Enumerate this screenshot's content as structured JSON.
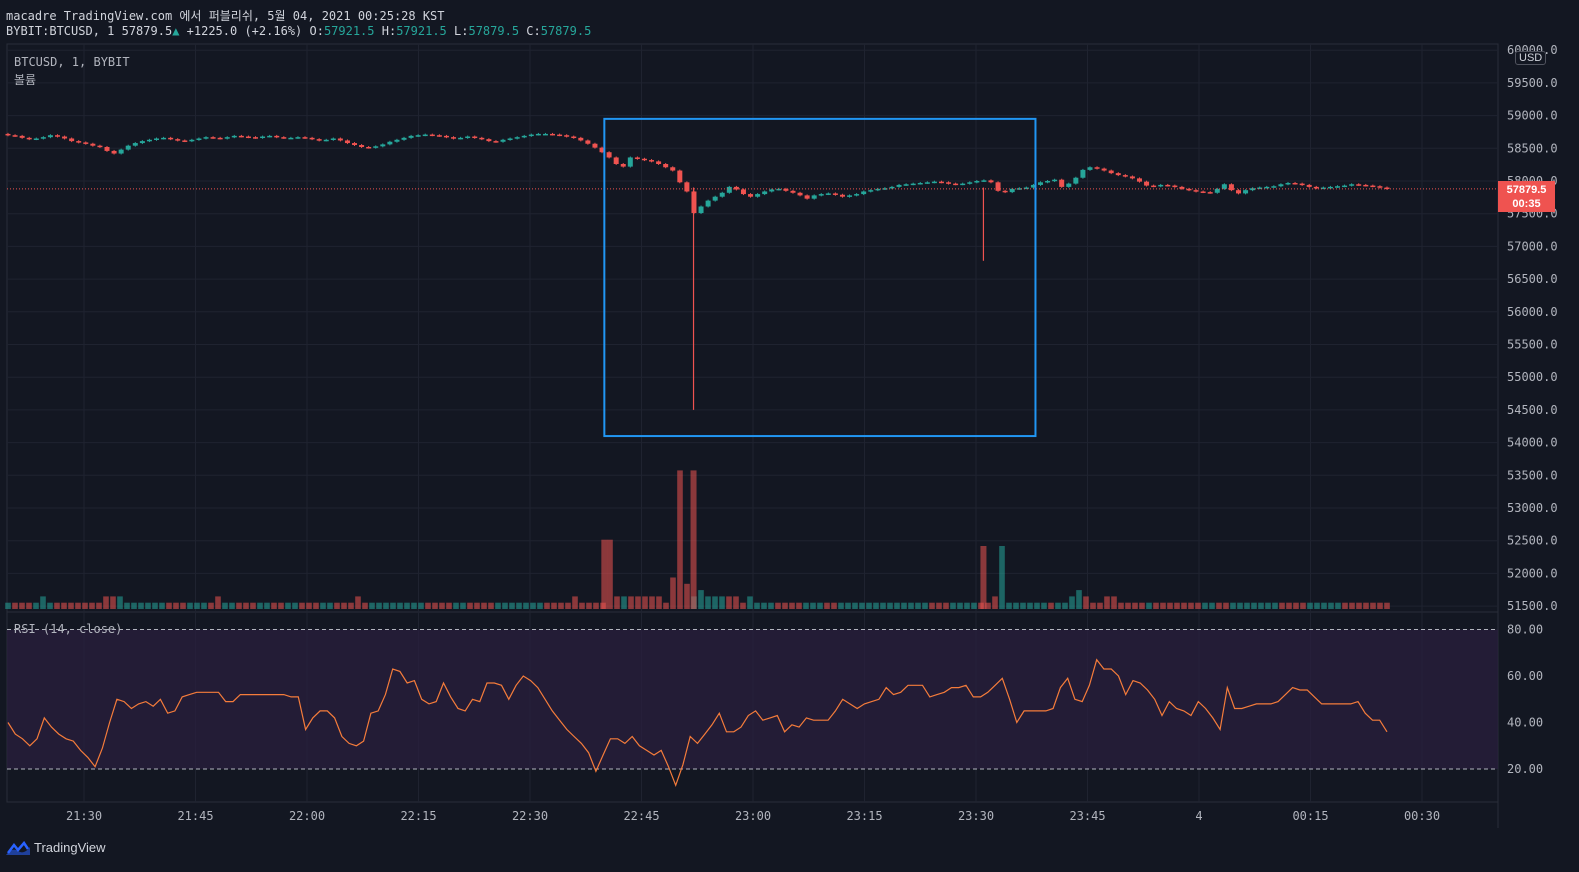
{
  "header": {
    "publish_line": "macadre TradingView.com 에서 퍼블리쉬, 5월 04, 2021 00:25:28 KST",
    "symbol": "BYBIT:BTCUSD, 1",
    "last": "57879.5",
    "change_icon": "triangle-up-icon",
    "change": "+1225.0 (+2.16%)",
    "o_label": "O:",
    "o_val": "57921.5",
    "h_label": "H:",
    "h_val": "57921.5",
    "l_label": "L:",
    "l_val": "57879.5",
    "c_label": "C:",
    "c_val": "57879.5"
  },
  "pane": {
    "series_label": "BTCUSD, 1, BYBIT",
    "volume_label": "볼륨",
    "rsi_label": "RSI (14, close)",
    "currency": "USD",
    "price_tag": "57879.5",
    "countdown": "00:35"
  },
  "branding": {
    "name": "TradingView",
    "icon": "tradingview-logo-icon"
  },
  "colors": {
    "background": "#131722",
    "up": "#26a69a",
    "down": "#ef5350",
    "rsi_line": "#f57c3b",
    "rsi_band": "#2a1f3d",
    "highlight_box": "#2196f3"
  },
  "chart_data": [
    {
      "type": "candlestick",
      "title": "BTCUSD, 1, BYBIT",
      "y_axis_ticks": [
        51500,
        52000,
        52500,
        53000,
        53500,
        54000,
        54500,
        55000,
        55500,
        56000,
        56500,
        57000,
        57500,
        58000,
        58500,
        59000,
        59500,
        60000
      ],
      "y_axis_top_label": "60000.0",
      "x_axis_ticks": [
        "21:30",
        "21:45",
        "22:00",
        "22:15",
        "22:30",
        "22:45",
        "23:00",
        "23:15",
        "23:30",
        "23:45",
        "4",
        "00:15",
        "00:30"
      ],
      "last_price": 57879.5,
      "highlight_region": {
        "from_time": "22:40",
        "to_time": "23:38",
        "price_low": 54100,
        "price_high": 58950
      },
      "close": [
        58700,
        58690,
        58660,
        58640,
        58650,
        58670,
        58700,
        58680,
        58650,
        58610,
        58590,
        58570,
        58540,
        58520,
        58460,
        58420,
        58480,
        58540,
        58580,
        58610,
        58630,
        58650,
        58660,
        58640,
        58620,
        58610,
        58630,
        58650,
        58670,
        58660,
        58650,
        58670,
        58690,
        58680,
        58670,
        58660,
        58680,
        58690,
        58670,
        58660,
        58660,
        58670,
        58660,
        58640,
        58620,
        58630,
        58650,
        58620,
        58580,
        58550,
        58520,
        58510,
        58530,
        58560,
        58600,
        58630,
        58660,
        58690,
        58700,
        58710,
        58700,
        58690,
        58670,
        58650,
        58660,
        58680,
        58660,
        58640,
        58610,
        58600,
        58630,
        58650,
        58670,
        58690,
        58710,
        58720,
        58720,
        58710,
        58700,
        58680,
        58660,
        58620,
        58570,
        58510,
        58440,
        58360,
        58260,
        58220,
        58360,
        58340,
        58320,
        58300,
        58260,
        58210,
        58160,
        57980,
        57840,
        57510,
        57610,
        57700,
        57760,
        57820,
        57910,
        57870,
        57800,
        57760,
        57800,
        57840,
        57870,
        57880,
        57850,
        57820,
        57780,
        57730,
        57780,
        57800,
        57810,
        57790,
        57760,
        57780,
        57800,
        57840,
        57860,
        57880,
        57890,
        57910,
        57940,
        57950,
        57960,
        57970,
        57980,
        57990,
        57980,
        57960,
        57950,
        57960,
        57980,
        58000,
        58010,
        57980,
        57850,
        57830,
        57880,
        57890,
        57900,
        57940,
        57980,
        58000,
        58020,
        57910,
        57960,
        58050,
        58170,
        58210,
        58190,
        58160,
        58120,
        58090,
        58070,
        58040,
        57990,
        57930,
        57920,
        57940,
        57930,
        57910,
        57880,
        57860,
        57840,
        57830,
        57820,
        57880,
        57950,
        57860,
        57810,
        57860,
        57890,
        57900,
        57910,
        57920,
        57950,
        57970,
        57960,
        57940,
        57910,
        57890,
        57900,
        57910,
        57920,
        57930,
        57950,
        57940,
        57930,
        57920,
        57900,
        57879.5
      ],
      "wicks": [
        {
          "time": "22:52",
          "low": 54500
        },
        {
          "time": "23:31",
          "low": 56780
        }
      ]
    },
    {
      "type": "bar",
      "title": "볼륨",
      "values": [
        1,
        1,
        1,
        1,
        1,
        2,
        1,
        1,
        1,
        1,
        1,
        1,
        1,
        1,
        2,
        2,
        2,
        1,
        1,
        1,
        1,
        1,
        1,
        1,
        1,
        1,
        1,
        1,
        1,
        1,
        2,
        1,
        1,
        1,
        1,
        1,
        1,
        1,
        1,
        1,
        1,
        1,
        1,
        1,
        1,
        1,
        1,
        1,
        1,
        1,
        2,
        1,
        1,
        1,
        1,
        1,
        1,
        1,
        1,
        1,
        1,
        1,
        1,
        1,
        1,
        1,
        1,
        1,
        1,
        1,
        1,
        1,
        1,
        1,
        1,
        1,
        1,
        1,
        1,
        1,
        1,
        2,
        1,
        1,
        1,
        1,
        11,
        2,
        2,
        2,
        2,
        2,
        2,
        2,
        1,
        5,
        22,
        4,
        2,
        3,
        2,
        2,
        2,
        2,
        2,
        1,
        2,
        1,
        1,
        1,
        1,
        1,
        1,
        1,
        1,
        1,
        1,
        1,
        1,
        1,
        1,
        1,
        1,
        1,
        1,
        1,
        1,
        1,
        1,
        1,
        1,
        1,
        1,
        1,
        1,
        1,
        1,
        1,
        1,
        1,
        1,
        2,
        10,
        1,
        1,
        1,
        1,
        1,
        1,
        1,
        1,
        1,
        2,
        3,
        2,
        1,
        1,
        2,
        2,
        1,
        1,
        1,
        1,
        1,
        1,
        1,
        1,
        1,
        1,
        1,
        1,
        1,
        1,
        1,
        1,
        1,
        1,
        1,
        1,
        1,
        1,
        1,
        1,
        1,
        1,
        1,
        1,
        1,
        1,
        1,
        1,
        1,
        1,
        1,
        1,
        1,
        1,
        1
      ],
      "spikes": [
        {
          "time": "22:40",
          "value": 11
        },
        {
          "time": "22:52",
          "value": 22
        },
        {
          "time": "23:31",
          "value": 10
        }
      ]
    },
    {
      "type": "line",
      "title": "RSI (14, close)",
      "y_axis_ticks": [
        20,
        40,
        60,
        80
      ],
      "bands": [
        20,
        80
      ],
      "values": [
        40,
        35,
        33,
        30,
        33,
        42,
        38,
        35,
        33,
        32,
        28,
        25,
        21,
        29,
        40,
        50,
        49,
        46,
        48,
        49,
        47,
        50,
        44,
        45,
        51,
        52,
        53,
        53,
        53,
        53,
        49,
        49,
        52,
        52,
        52,
        52,
        52,
        52,
        52,
        51,
        51,
        37,
        42,
        45,
        45,
        42,
        34,
        31,
        30,
        32,
        44,
        45,
        52,
        63,
        62,
        57,
        58,
        50,
        48,
        49,
        57,
        51,
        46,
        45,
        50,
        49,
        57,
        57,
        56,
        50,
        56,
        60,
        58,
        55,
        50,
        45,
        41,
        37,
        34,
        31,
        27,
        19,
        26,
        33,
        33,
        31,
        34,
        30,
        28,
        26,
        28,
        21,
        13,
        22,
        34,
        31,
        35,
        39,
        44,
        36,
        36,
        38,
        43,
        45,
        41,
        42,
        43,
        36,
        39,
        38,
        42,
        41,
        41,
        41,
        45,
        50,
        48,
        46,
        48,
        49,
        50,
        55,
        52,
        53,
        56,
        56,
        56,
        51,
        52,
        53,
        55,
        55,
        56,
        51,
        51,
        53,
        56,
        59,
        50,
        40,
        45,
        45,
        45,
        45,
        46,
        55,
        59,
        50,
        49,
        56,
        67,
        63,
        63,
        60,
        52,
        58,
        57,
        54,
        50,
        43,
        49,
        46,
        45,
        43,
        49,
        46,
        42,
        37,
        55,
        46,
        46,
        47,
        48,
        48,
        48,
        49,
        52,
        55,
        54,
        54,
        51,
        48,
        48,
        48,
        48,
        48,
        49,
        44,
        41,
        41,
        36
      ]
    }
  ]
}
